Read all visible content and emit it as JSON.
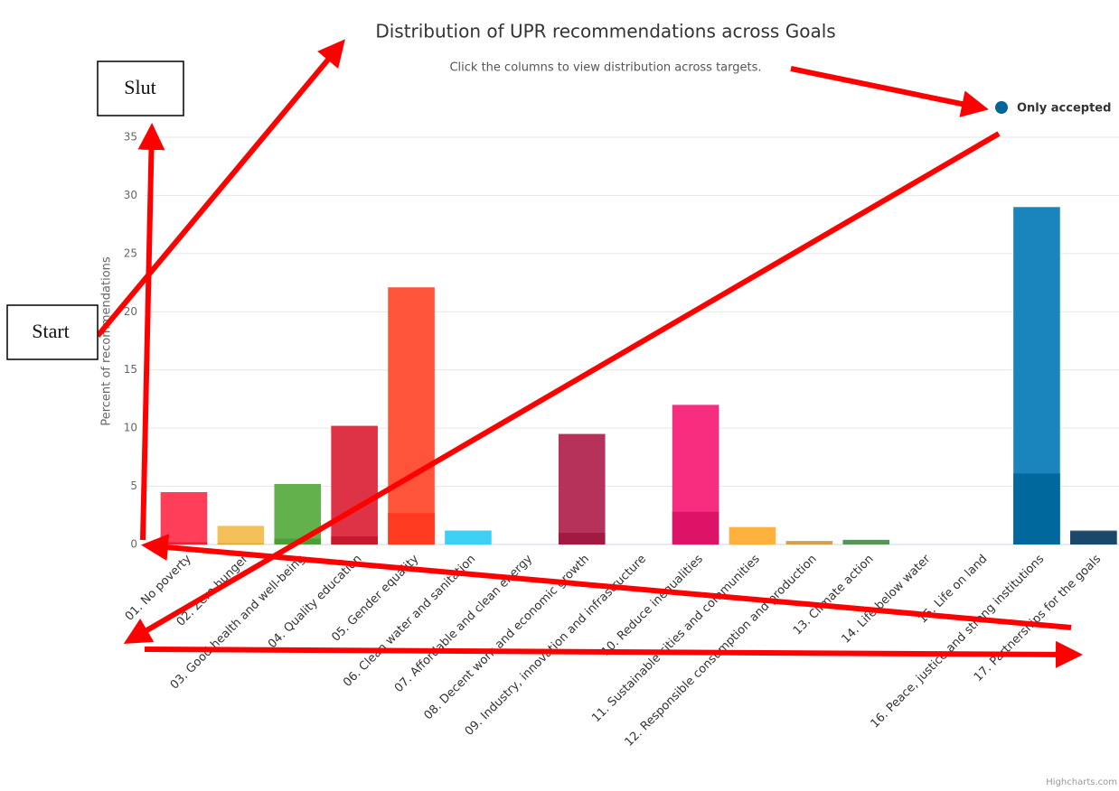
{
  "chart_data": {
    "type": "bar",
    "title": "Distribution of UPR recommendations across Goals",
    "subtitle": "Click the columns to view distribution across targets.",
    "ylabel": "Percent of recommendations",
    "credits": "Highcharts.com",
    "categories": [
      "01. No poverty",
      "02. Zero hunger",
      "03. Good health and well-being",
      "04. Quality education",
      "05. Gender equality",
      "06. Clean water and sanitation",
      "07. Affordable and clean energy",
      "08. Decent work and economic growth",
      "09. Industry, innovation and infrastructure",
      "10. Reduce inequalities",
      "11. Sustainable cities and communities",
      "12. Responsible consumption and production",
      "13. Climate action",
      "14. Life below water",
      "15. Life on land",
      "16. Peace, justice and strong institutions",
      "17. Partnerships for the goals"
    ],
    "series": [
      {
        "colors": [
          "#ff3f5a",
          "#f3c05a",
          "#62b14c",
          "#de3247",
          "#ff5439",
          "#3ed0f4",
          "#fcc30b",
          "#b7325a",
          "#fd7a3a",
          "#f72d80",
          "#ffb13e",
          "#d4a04a",
          "#56945a",
          "#2aaeea",
          "#6dd444",
          "#1a84bc",
          "#335f80"
        ],
        "values": [
          4.5,
          1.6,
          5.2,
          10.2,
          22.1,
          1.2,
          0,
          9.5,
          0,
          12.0,
          1.5,
          0.3,
          0.4,
          0,
          0,
          29.0,
          1.2
        ]
      },
      {
        "name": "Only accepted",
        "color": "#006699",
        "colors": [
          "#e5243b",
          "#dda63a",
          "#4c9f38",
          "#c5192d",
          "#ff3a21",
          "#26bde2",
          "#fcc30b",
          "#a21942",
          "#fd6925",
          "#dd1367",
          "#fd9d24",
          "#bf8b2e",
          "#3f7e44",
          "#0a97d9",
          "#56c02b",
          "#00689d",
          "#19486a"
        ],
        "values": [
          0.2,
          0.1,
          0.5,
          0.7,
          2.7,
          0,
          0,
          1.0,
          0,
          2.8,
          0,
          0,
          0,
          0,
          0,
          6.1,
          1.1
        ]
      }
    ],
    "ylim": [
      0,
      35
    ],
    "yticks": [
      0,
      5,
      10,
      15,
      20,
      25,
      30,
      35
    ],
    "grid": true,
    "legend": "top-right",
    "annotations": [
      "Slut",
      "Start"
    ]
  }
}
